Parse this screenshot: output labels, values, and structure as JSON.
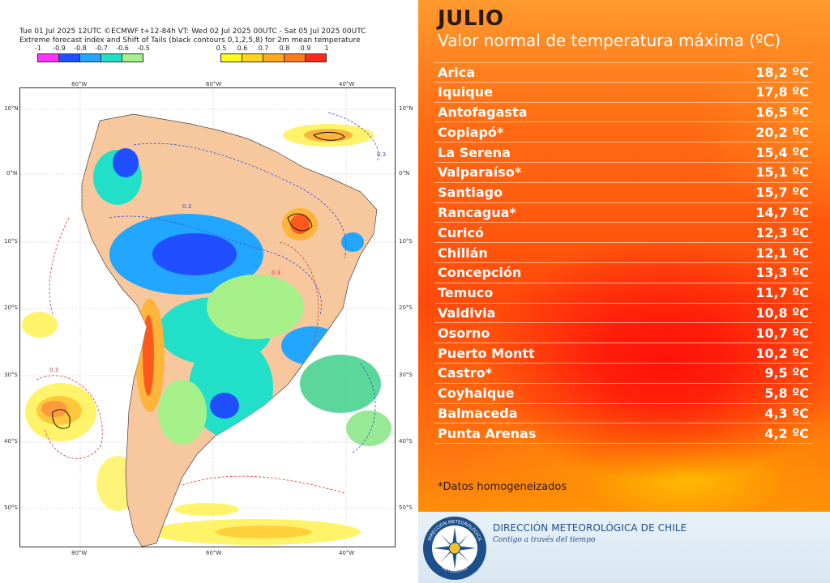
{
  "map": {
    "header_line1": "Tue 01 Jul 2025 12UTC ©ECMWF t+12-84h  VT: Wed 02 Jul 2025 00UTC - Sat 05 Jul 2025 00UTC",
    "header_line2": "Extreme forecast index and Shift of Tails (black contours 0,1,2,5,8) for 2m mean temperature",
    "colorbar_negative": {
      "ticks": [
        "-1",
        "-0.9",
        "-0.8",
        "-0.7",
        "-0.6",
        "-0.5"
      ],
      "colors": [
        "#ff33ff",
        "#1f4fff",
        "#22a6ff",
        "#22e0c8",
        "#a6f08a"
      ]
    },
    "colorbar_positive": {
      "ticks": [
        "0.5",
        "0.6",
        "0.7",
        "0.8",
        "0.9",
        "1"
      ],
      "colors": [
        "#fffc1e",
        "#ffd21e",
        "#ffaa1e",
        "#ff7a1e",
        "#ff2a1e"
      ]
    },
    "lat_labels": [
      "10°N",
      "0°N",
      "10°S",
      "20°S",
      "30°S",
      "40°S",
      "50°S"
    ],
    "lon_labels": [
      "80°W",
      "60°W",
      "40°W"
    ],
    "land_color": "#f7c79e",
    "contour_label": "0.3"
  },
  "panel": {
    "title": "JULIO",
    "subtitle": "Valor normal de temperatura máxima (ºC)",
    "cities": [
      {
        "name": "Arica",
        "temp": "18,2 ºC"
      },
      {
        "name": "Iquique",
        "temp": "17,8 ºC"
      },
      {
        "name": "Antofagasta",
        "temp": "16,5 ºC"
      },
      {
        "name": "Copiapó*",
        "temp": "20,2 ºC"
      },
      {
        "name": "La Serena",
        "temp": "15,4 ºC"
      },
      {
        "name": "Valparaíso*",
        "temp": "15,1 ºC"
      },
      {
        "name": "Santiago",
        "temp": "15,7 ºC"
      },
      {
        "name": "Rancagua*",
        "temp": "14,7 ºC"
      },
      {
        "name": "Curicó",
        "temp": "12,3 ºC"
      },
      {
        "name": "Chillán",
        "temp": "12,1 ºC"
      },
      {
        "name": "Concepción",
        "temp": "13,3 ºC"
      },
      {
        "name": "Temuco",
        "temp": "11,7 ºC"
      },
      {
        "name": "Valdivia",
        "temp": "10,8 ºC"
      },
      {
        "name": "Osorno",
        "temp": "10,7 ºC"
      },
      {
        "name": "Puerto Montt",
        "temp": "10,2 ºC"
      },
      {
        "name": "Castro*",
        "temp": "9,5 ºC"
      },
      {
        "name": "Coyhaique",
        "temp": "5,8 ºC"
      },
      {
        "name": "Balmaceda",
        "temp": "4,3 ºC"
      },
      {
        "name": "Punta Arenas",
        "temp": "4,2 ºC"
      }
    ],
    "footnote": "*Datos homogeneizados",
    "org_name": "DIRECCIÓN METEOROLÓGICA DE CHILE",
    "org_slogan": "Contigo a través del tiempo",
    "logo_text_top": "DIRECCIÓN METEOROLÓGICA",
    "logo_text_bottom": "METEOCHILE"
  },
  "colors": {
    "title": "#2a1a12",
    "row_text": "#ffffff",
    "footer_bg": "#e3eef7",
    "footer_text": "#1d4f8c"
  }
}
